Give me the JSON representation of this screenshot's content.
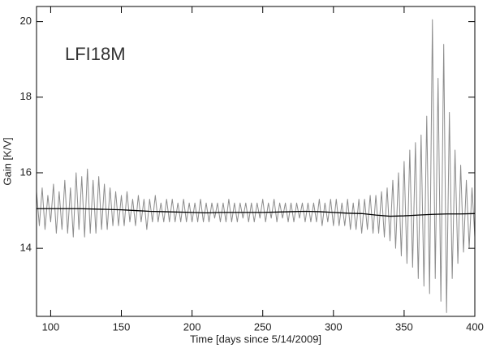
{
  "chart_data": {
    "type": "line",
    "annotation": "LFI18M",
    "xlabel": "Time [days since 5/14/2009]",
    "ylabel": "Gain [K/V]",
    "xlim": [
      90,
      400
    ],
    "ylim": [
      12.2,
      20.4
    ],
    "xticks": [
      100,
      150,
      200,
      250,
      300,
      350,
      400
    ],
    "yticks": [
      14,
      16,
      18,
      20
    ],
    "series": [
      {
        "color": "#8c8c8c",
        "x": [
          90,
          92,
          94,
          96,
          98,
          100,
          102,
          104,
          106,
          108,
          110,
          112,
          114,
          116,
          118,
          120,
          122,
          124,
          126,
          128,
          130,
          132,
          134,
          136,
          138,
          140,
          142,
          144,
          146,
          148,
          150,
          152,
          154,
          156,
          158,
          160,
          162,
          164,
          166,
          168,
          170,
          172,
          174,
          176,
          178,
          180,
          182,
          184,
          186,
          188,
          190,
          192,
          194,
          196,
          198,
          200,
          202,
          204,
          206,
          208,
          210,
          212,
          214,
          216,
          218,
          220,
          222,
          224,
          226,
          228,
          230,
          232,
          234,
          236,
          238,
          240,
          242,
          244,
          246,
          248,
          250,
          252,
          254,
          256,
          258,
          260,
          262,
          264,
          266,
          268,
          270,
          272,
          274,
          276,
          278,
          280,
          282,
          284,
          286,
          288,
          290,
          292,
          294,
          296,
          298,
          300,
          302,
          304,
          306,
          308,
          310,
          312,
          314,
          316,
          318,
          320,
          322,
          324,
          326,
          328,
          330,
          332,
          334,
          336,
          338,
          340,
          342,
          344,
          346,
          348,
          350,
          352,
          354,
          356,
          358,
          360,
          362,
          364,
          366,
          368,
          370,
          372,
          374,
          376,
          378,
          380,
          382,
          384,
          386,
          388,
          390,
          392,
          394,
          396,
          398,
          400
        ],
        "values": [
          15.5,
          14.6,
          15.6,
          14.5,
          15.4,
          14.7,
          15.7,
          14.4,
          15.5,
          14.5,
          15.8,
          14.4,
          15.6,
          14.3,
          16.0,
          14.5,
          15.9,
          14.3,
          16.1,
          14.4,
          15.8,
          14.4,
          15.9,
          14.5,
          15.7,
          14.5,
          15.6,
          14.6,
          15.5,
          14.6,
          15.4,
          14.6,
          15.5,
          14.7,
          15.3,
          14.6,
          15.4,
          14.7,
          15.3,
          14.5,
          15.3,
          14.7,
          15.4,
          14.7,
          15.2,
          14.7,
          15.3,
          14.7,
          15.3,
          14.7,
          15.2,
          14.7,
          15.3,
          14.7,
          15.2,
          14.7,
          15.2,
          14.7,
          15.3,
          14.7,
          15.2,
          14.7,
          15.2,
          14.8,
          15.2,
          14.7,
          15.2,
          14.7,
          15.3,
          14.7,
          15.2,
          14.7,
          15.2,
          14.8,
          15.2,
          14.7,
          15.2,
          14.7,
          15.2,
          14.8,
          15.3,
          14.7,
          15.2,
          14.8,
          15.3,
          14.7,
          15.2,
          14.8,
          15.2,
          14.7,
          15.2,
          14.7,
          15.2,
          14.8,
          15.2,
          14.7,
          15.2,
          14.7,
          15.2,
          14.7,
          15.3,
          14.6,
          15.2,
          14.7,
          15.3,
          14.6,
          15.3,
          14.6,
          15.2,
          14.6,
          15.3,
          14.5,
          15.2,
          14.5,
          15.3,
          14.4,
          15.3,
          14.5,
          15.4,
          14.4,
          15.4,
          14.4,
          15.5,
          14.3,
          15.6,
          14.2,
          15.8,
          14.0,
          16.0,
          13.8,
          16.3,
          13.6,
          16.6,
          13.5,
          16.8,
          13.2,
          17.0,
          13.0,
          17.5,
          12.8,
          20.05,
          13.2,
          18.5,
          12.6,
          19.4,
          12.3,
          17.6,
          13.2,
          16.6,
          13.6,
          16.2,
          13.9,
          15.8,
          14.0,
          15.6,
          14.3
        ]
      },
      {
        "color": "#000000",
        "x": [
          90,
          100,
          110,
          120,
          130,
          140,
          150,
          160,
          170,
          180,
          190,
          200,
          210,
          220,
          230,
          240,
          250,
          260,
          270,
          280,
          290,
          300,
          310,
          320,
          330,
          340,
          350,
          360,
          370,
          380,
          390,
          400
        ],
        "values": [
          15.05,
          15.05,
          15.05,
          15.05,
          15.04,
          15.03,
          15.02,
          15.0,
          14.98,
          14.97,
          14.96,
          14.95,
          14.94,
          14.95,
          14.95,
          14.95,
          14.95,
          14.96,
          14.97,
          14.98,
          14.97,
          14.95,
          14.93,
          14.92,
          14.88,
          14.85,
          14.86,
          14.88,
          14.9,
          14.91,
          14.91,
          14.92
        ]
      }
    ]
  }
}
